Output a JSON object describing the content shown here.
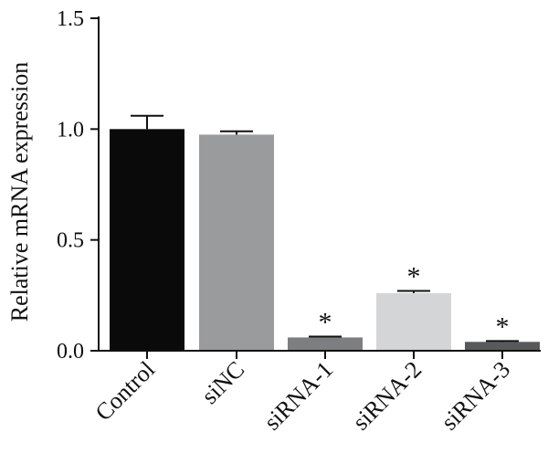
{
  "chart_data": {
    "type": "bar",
    "title": "",
    "xlabel": "",
    "ylabel": "Relative mRNA expression",
    "ylim": [
      0,
      1.5
    ],
    "yticks": [
      "0.0",
      "0.5",
      "1.0",
      "1.5"
    ],
    "categories": [
      "Control",
      "siNC",
      "siRNA-1",
      "siRNA-2",
      "siRNA-3"
    ],
    "values": [
      1.0,
      0.975,
      0.06,
      0.26,
      0.04
    ],
    "error": [
      0.06,
      0.015,
      0.004,
      0.01,
      0.004
    ],
    "significance": [
      "",
      "",
      "*",
      "*",
      "*"
    ],
    "colors": [
      "#0a0a0a",
      "#9a9b9d",
      "#7d7e80",
      "#d4d5d6",
      "#58595b"
    ],
    "grid": false,
    "legend": "none"
  }
}
